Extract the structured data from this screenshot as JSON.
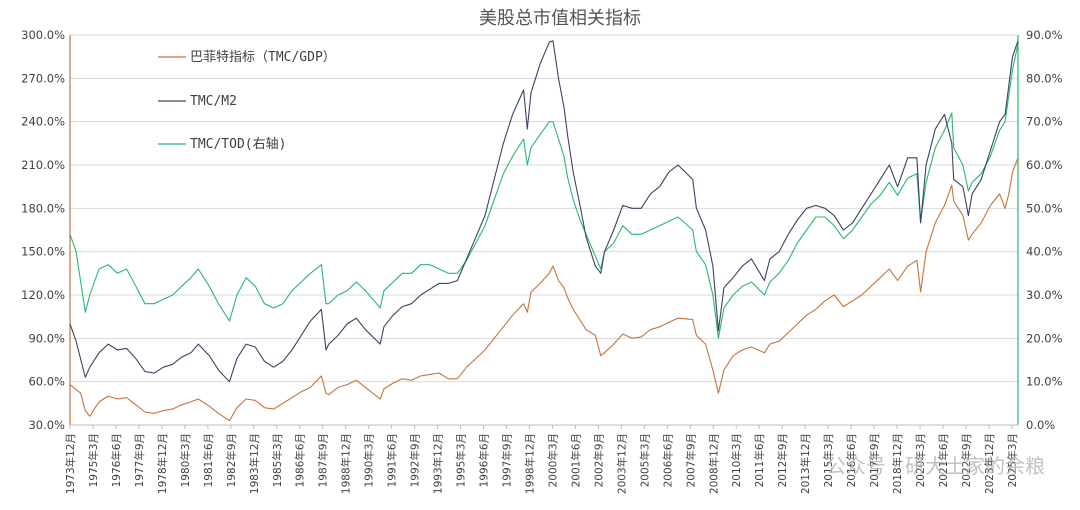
{
  "chart_data": {
    "type": "line",
    "title": "美股总市值相关指标",
    "xlabel": "",
    "ylabel_left": "",
    "ylabel_right": "",
    "ylim_left": [
      30,
      300
    ],
    "ylim_right": [
      0,
      90
    ],
    "yticks_left": [
      "30.0%",
      "60.0%",
      "90.0%",
      "120.0%",
      "150.0%",
      "180.0%",
      "210.0%",
      "240.0%",
      "270.0%",
      "300.0%"
    ],
    "yticks_right": [
      "0.0%",
      "10.0%",
      "20.0%",
      "30.0%",
      "40.0%",
      "50.0%",
      "60.0%",
      "70.0%",
      "80.0%",
      "90.0%"
    ],
    "x_ticks": [
      "1973年12月",
      "1975年3月",
      "1976年6月",
      "1977年9月",
      "1978年12月",
      "1980年3月",
      "1981年6月",
      "1982年9月",
      "1983年12月",
      "1985年3月",
      "1986年6月",
      "1987年9月",
      "1988年12月",
      "1990年3月",
      "1991年6月",
      "1992年9月",
      "1993年12月",
      "1995年3月",
      "1996年6月",
      "1997年9月",
      "1998年12月",
      "2000年3月",
      "2001年6月",
      "2002年9月",
      "2003年12月",
      "2005年3月",
      "2006年6月",
      "2007年9月",
      "2008年12月",
      "2010年3月",
      "2011年6月",
      "2012年9月",
      "2013年12月",
      "2015年3月",
      "2016年6月",
      "2017年9月",
      "2018年12月",
      "2020年3月",
      "2021年6月",
      "2022年9月",
      "2023年12月",
      "2025年3月"
    ],
    "x_range": [
      "1973年12月",
      "2025年6月"
    ],
    "grid": "horizontal",
    "legend_position": "top-left",
    "series": [
      {
        "name": "巴菲特指标（TMC/GDP）",
        "axis": "left",
        "color": "#c8733a",
        "x": [
          1973.92,
          1974.5,
          1974.75,
          1975.0,
          1975.5,
          1976.0,
          1976.5,
          1977.0,
          1977.5,
          1978.0,
          1978.5,
          1979.0,
          1979.5,
          1980.0,
          1980.5,
          1980.9,
          1981.5,
          1982.0,
          1982.6,
          1983.0,
          1983.5,
          1984.0,
          1984.5,
          1985.0,
          1985.5,
          1986.0,
          1986.5,
          1987.0,
          1987.6,
          1987.85,
          1988.0,
          1988.5,
          1989.0,
          1989.5,
          1990.0,
          1990.8,
          1991.0,
          1991.5,
          1992.0,
          1992.5,
          1993.0,
          1993.5,
          1994.0,
          1994.5,
          1995.0,
          1995.5,
          1996.0,
          1996.5,
          1997.0,
          1997.5,
          1998.0,
          1998.6,
          1998.8,
          1999.0,
          1999.5,
          2000.0,
          2000.2,
          2000.5,
          2000.8,
          2001.0,
          2001.3,
          2001.7,
          2002.0,
          2002.5,
          2002.8,
          2003.0,
          2003.5,
          2004.0,
          2004.5,
          2005.0,
          2005.5,
          2006.0,
          2006.5,
          2007.0,
          2007.8,
          2008.0,
          2008.5,
          2008.9,
          2009.2,
          2009.5,
          2010.0,
          2010.5,
          2011.0,
          2011.7,
          2012.0,
          2012.5,
          2013.0,
          2013.5,
          2014.0,
          2014.5,
          2015.0,
          2015.5,
          2016.0,
          2016.5,
          2017.0,
          2017.5,
          2018.0,
          2018.5,
          2018.95,
          2019.5,
          2020.0,
          2020.2,
          2020.5,
          2021.0,
          2021.5,
          2021.9,
          2022.0,
          2022.5,
          2022.8,
          2023.0,
          2023.5,
          2024.0,
          2024.5,
          2024.8,
          2025.0,
          2025.2,
          2025.5
        ],
        "values": [
          58,
          52,
          40,
          36,
          46,
          50,
          48,
          49,
          44,
          39,
          38,
          40,
          41,
          44,
          46,
          48,
          43,
          38,
          33,
          42,
          48,
          47,
          42,
          41,
          45,
          49,
          53,
          56,
          64,
          52,
          51,
          56,
          58,
          61,
          56,
          48,
          55,
          59,
          62,
          61,
          64,
          65,
          66,
          62,
          62,
          70,
          76,
          82,
          90,
          98,
          106,
          114,
          108,
          122,
          128,
          135,
          140,
          130,
          125,
          118,
          110,
          102,
          96,
          92,
          78,
          80,
          86,
          93,
          90,
          91,
          96,
          98,
          101,
          104,
          103,
          92,
          86,
          68,
          52,
          68,
          78,
          82,
          84,
          80,
          86,
          88,
          94,
          100,
          106,
          110,
          116,
          120,
          112,
          116,
          120,
          126,
          132,
          138,
          130,
          140,
          144,
          122,
          150,
          170,
          182,
          196,
          185,
          175,
          158,
          162,
          170,
          182,
          190,
          180,
          190,
          205,
          215
        ]
      },
      {
        "name": "TMC/M2",
        "axis": "left",
        "color": "#3a4366",
        "x": [
          1973.92,
          1974.25,
          1974.75,
          1975.0,
          1975.5,
          1976.0,
          1976.5,
          1977.0,
          1977.5,
          1978.0,
          1978.5,
          1979.0,
          1979.5,
          1980.0,
          1980.5,
          1980.9,
          1981.5,
          1982.0,
          1982.6,
          1983.0,
          1983.5,
          1984.0,
          1984.5,
          1985.0,
          1985.5,
          1986.0,
          1986.5,
          1987.0,
          1987.6,
          1987.85,
          1988.0,
          1988.5,
          1989.0,
          1989.5,
          1990.0,
          1990.8,
          1991.0,
          1991.5,
          1992.0,
          1992.5,
          1993.0,
          1993.5,
          1994.0,
          1994.5,
          1995.0,
          1995.5,
          1996.0,
          1996.5,
          1997.0,
          1997.5,
          1998.0,
          1998.6,
          1998.8,
          1999.0,
          1999.5,
          2000.0,
          2000.2,
          2000.5,
          2000.8,
          2001.0,
          2001.3,
          2001.7,
          2002.0,
          2002.5,
          2002.8,
          2003.0,
          2003.5,
          2004.0,
          2004.5,
          2005.0,
          2005.5,
          2006.0,
          2006.5,
          2007.0,
          2007.8,
          2008.0,
          2008.5,
          2008.9,
          2009.2,
          2009.5,
          2010.0,
          2010.5,
          2011.0,
          2011.7,
          2012.0,
          2012.5,
          2013.0,
          2013.5,
          2014.0,
          2014.5,
          2015.0,
          2015.5,
          2016.0,
          2016.5,
          2017.0,
          2017.5,
          2018.0,
          2018.5,
          2018.95,
          2019.5,
          2020.0,
          2020.2,
          2020.5,
          2021.0,
          2021.5,
          2021.9,
          2022.0,
          2022.5,
          2022.8,
          2023.0,
          2023.5,
          2024.0,
          2024.5,
          2024.8,
          2025.0,
          2025.2,
          2025.5
        ],
        "values": [
          100,
          88,
          63,
          70,
          80,
          86,
          82,
          83,
          76,
          67,
          66,
          70,
          72,
          77,
          80,
          86,
          78,
          68,
          60,
          76,
          86,
          84,
          74,
          70,
          74,
          82,
          92,
          102,
          110,
          82,
          86,
          92,
          100,
          104,
          96,
          86,
          98,
          106,
          112,
          114,
          120,
          124,
          128,
          128,
          130,
          145,
          160,
          175,
          200,
          225,
          245,
          262,
          235,
          260,
          280,
          295,
          296,
          270,
          250,
          230,
          205,
          180,
          160,
          140,
          135,
          150,
          165,
          182,
          180,
          180,
          190,
          195,
          205,
          210,
          200,
          180,
          165,
          140,
          95,
          125,
          132,
          140,
          145,
          130,
          145,
          150,
          162,
          172,
          180,
          182,
          180,
          175,
          165,
          170,
          180,
          190,
          200,
          210,
          195,
          215,
          215,
          170,
          210,
          235,
          245,
          225,
          200,
          195,
          175,
          190,
          200,
          220,
          240,
          245,
          265,
          285,
          296
        ]
      },
      {
        "name": "TMC/TOD(右轴)",
        "axis": "right",
        "color": "#2ab673",
        "x": [
          1973.92,
          1974.25,
          1974.75,
          1975.0,
          1975.5,
          1976.0,
          1976.5,
          1977.0,
          1977.5,
          1978.0,
          1978.5,
          1979.0,
          1979.5,
          1980.0,
          1980.5,
          1980.9,
          1981.5,
          1982.0,
          1982.6,
          1983.0,
          1983.5,
          1984.0,
          1984.5,
          1985.0,
          1985.5,
          1986.0,
          1986.5,
          1987.0,
          1987.6,
          1987.85,
          1988.0,
          1988.5,
          1989.0,
          1989.5,
          1990.0,
          1990.8,
          1991.0,
          1991.5,
          1992.0,
          1992.5,
          1993.0,
          1993.5,
          1994.0,
          1994.5,
          1995.0,
          1995.5,
          1996.0,
          1996.5,
          1997.0,
          1997.5,
          1998.0,
          1998.6,
          1998.8,
          1999.0,
          1999.5,
          2000.0,
          2000.2,
          2000.5,
          2000.8,
          2001.0,
          2001.3,
          2001.7,
          2002.0,
          2002.5,
          2002.8,
          2003.0,
          2003.5,
          2004.0,
          2004.5,
          2005.0,
          2005.5,
          2006.0,
          2006.5,
          2007.0,
          2007.8,
          2008.0,
          2008.5,
          2008.9,
          2009.2,
          2009.5,
          2010.0,
          2010.5,
          2011.0,
          2011.7,
          2012.0,
          2012.5,
          2013.0,
          2013.5,
          2014.0,
          2014.5,
          2015.0,
          2015.5,
          2016.0,
          2016.5,
          2017.0,
          2017.5,
          2018.0,
          2018.5,
          2018.95,
          2019.5,
          2020.0,
          2020.2,
          2020.5,
          2021.0,
          2021.5,
          2021.9,
          2022.0,
          2022.5,
          2022.8,
          2023.0,
          2023.5,
          2024.0,
          2024.5,
          2024.8,
          2025.0,
          2025.2,
          2025.5
        ],
        "values": [
          44,
          40,
          26,
          30,
          36,
          37,
          35,
          36,
          32,
          28,
          28,
          29,
          30,
          32,
          34,
          36,
          32,
          28,
          24,
          30,
          34,
          32,
          28,
          27,
          28,
          31,
          33,
          35,
          37,
          28,
          28,
          30,
          31,
          33,
          31,
          27,
          31,
          33,
          35,
          35,
          37,
          37,
          36,
          35,
          35,
          38,
          42,
          46,
          52,
          58,
          62,
          66,
          60,
          64,
          67,
          70,
          70,
          66,
          62,
          57,
          52,
          47,
          44,
          39,
          36,
          40,
          42,
          46,
          44,
          44,
          45,
          46,
          47,
          48,
          45,
          40,
          37,
          30,
          20,
          27,
          30,
          32,
          33,
          30,
          33,
          35,
          38,
          42,
          45,
          48,
          48,
          46,
          43,
          45,
          48,
          51,
          53,
          56,
          53,
          57,
          58,
          47,
          56,
          64,
          68,
          72,
          64,
          60,
          54,
          56,
          58,
          62,
          68,
          70,
          76,
          82,
          88
        ]
      }
    ]
  },
  "watermark": "公众号 · 研大土家的余粮"
}
